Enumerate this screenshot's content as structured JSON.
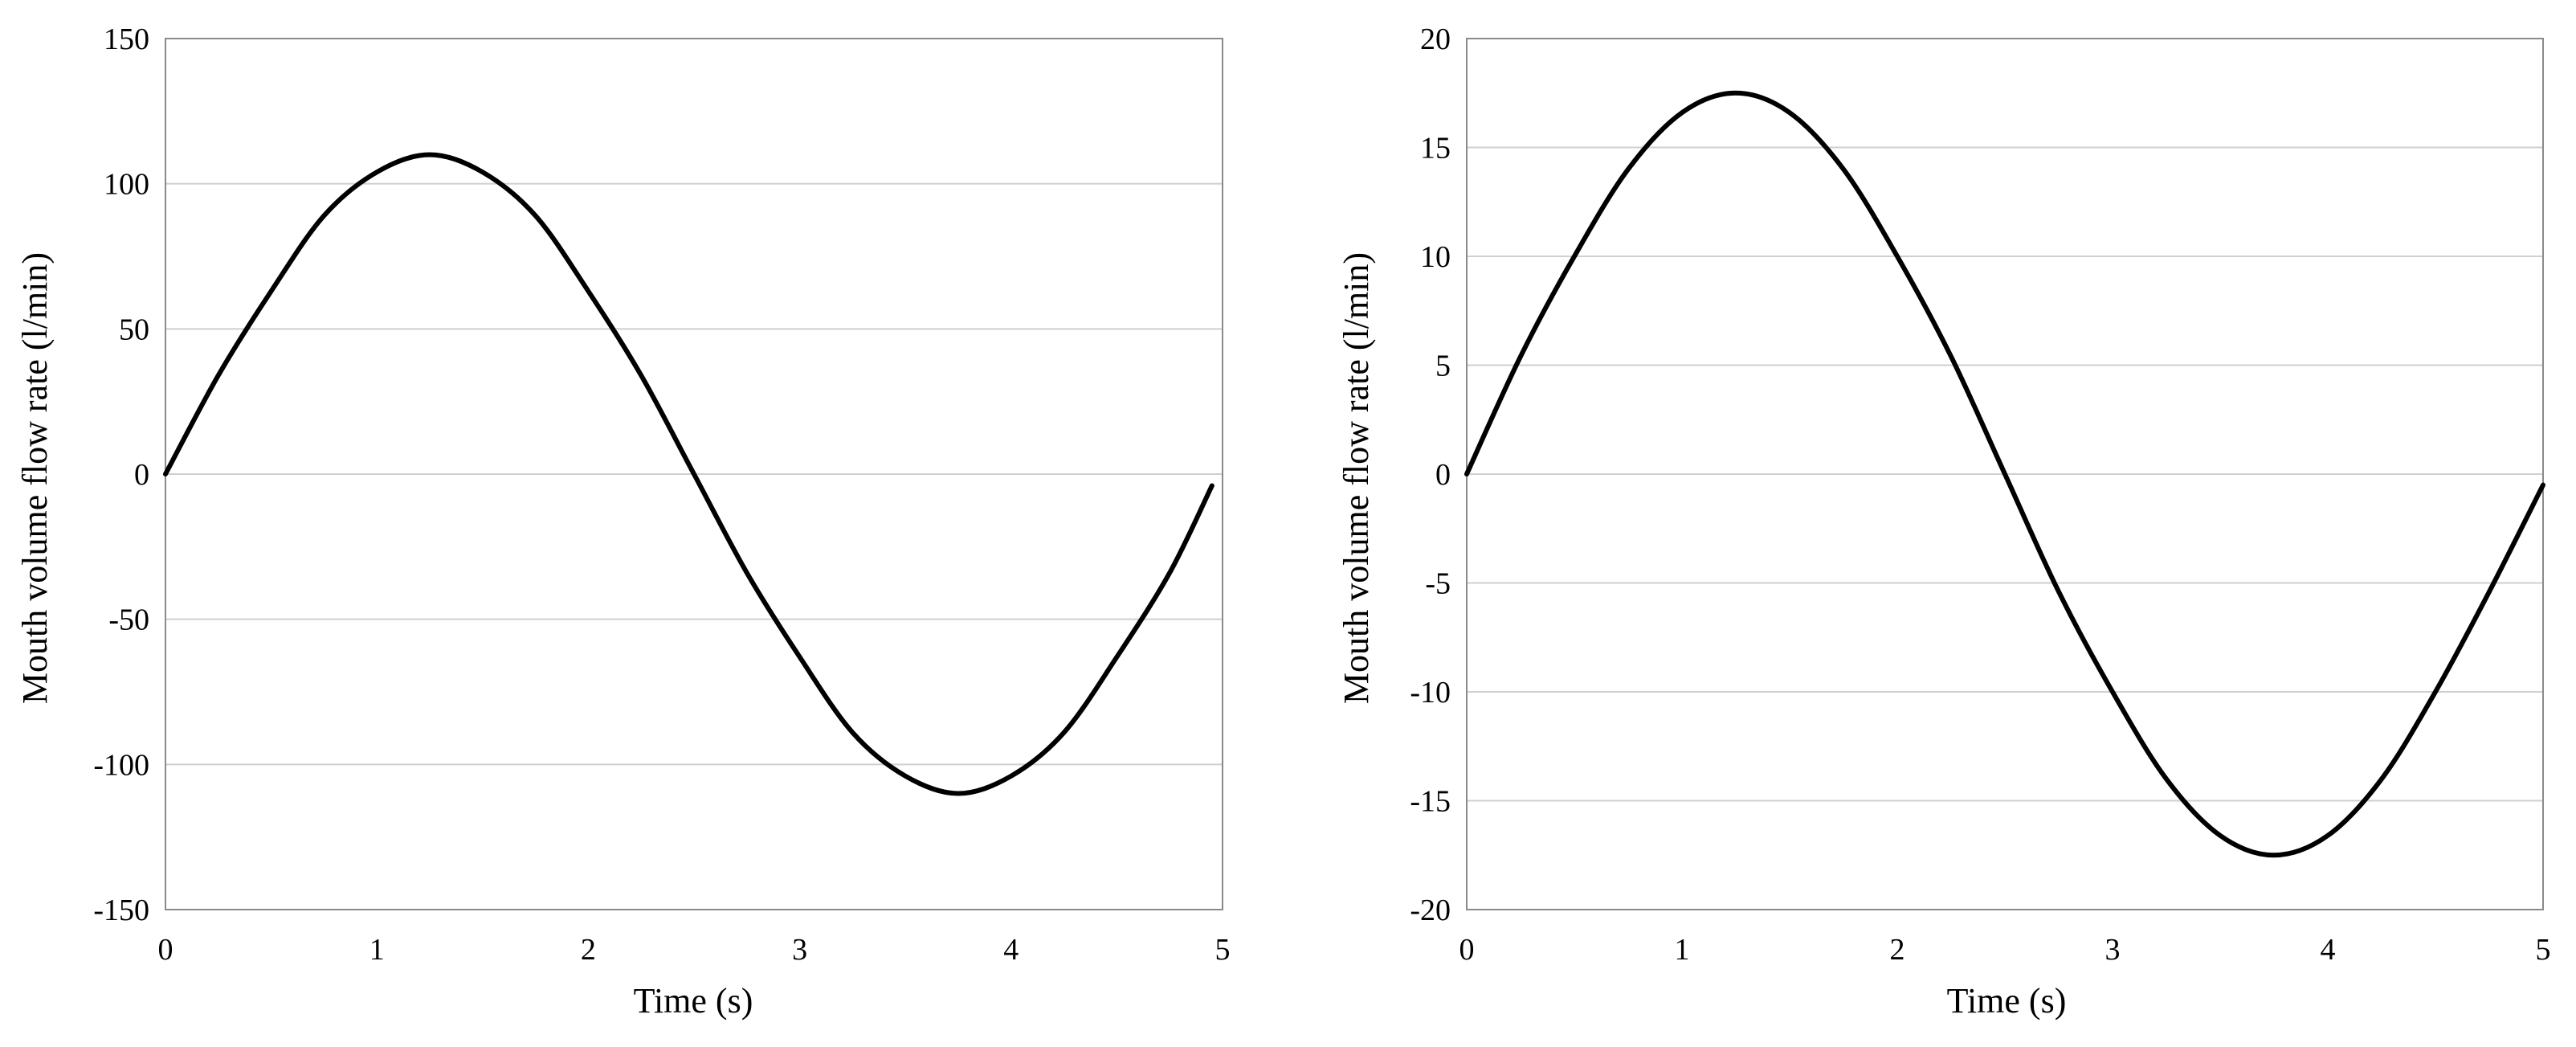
{
  "chart_data": [
    {
      "type": "line",
      "xlabel": "Time (s)",
      "ylabel": "Mouth volume flow rate (l/min)",
      "xlim": [
        0,
        5
      ],
      "ylim": [
        -150,
        150
      ],
      "x_ticks": [
        "0",
        "1",
        "2",
        "3",
        "4",
        "5"
      ],
      "y_ticks": [
        "150",
        "100",
        "50",
        "0",
        "-50",
        "-100",
        "-150"
      ],
      "grid": "horizontal",
      "legend": "none",
      "line_color": "#000000",
      "series": [
        {
          "x": [
            0,
            0.25,
            0.5,
            0.75,
            1.0,
            1.25,
            1.5,
            1.75,
            2.0,
            2.25,
            2.5,
            2.75,
            3.0,
            3.25,
            3.5,
            3.75,
            4.0,
            4.25,
            4.5,
            4.75,
            4.95
          ],
          "values": [
            0,
            34,
            63,
            89,
            104,
            110,
            104,
            89,
            63,
            34,
            0,
            -34,
            -63,
            -89,
            -104,
            -110,
            -104,
            -89,
            -63,
            -34,
            -4
          ]
        }
      ]
    },
    {
      "type": "line",
      "xlabel": "Time (s)",
      "ylabel": "Mouth volume flow rate (l/min)",
      "xlim": [
        0,
        5
      ],
      "ylim": [
        -20,
        20
      ],
      "x_ticks": [
        "0",
        "1",
        "2",
        "3",
        "4",
        "5"
      ],
      "y_ticks": [
        "20",
        "15",
        "10",
        "5",
        "0",
        "-5",
        "-10",
        "-15",
        "-20"
      ],
      "grid": "horizontal",
      "legend": "none",
      "line_color": "#000000",
      "series": [
        {
          "x": [
            0,
            0.25,
            0.5,
            0.75,
            1.0,
            1.25,
            1.5,
            1.75,
            2.0,
            2.25,
            2.5,
            2.75,
            3.0,
            3.25,
            3.5,
            3.75,
            4.0,
            4.25,
            4.5,
            4.75,
            5.0
          ],
          "values": [
            0,
            5.4,
            10,
            14,
            16.6,
            17.5,
            16.6,
            14,
            10,
            5.4,
            0,
            -5.4,
            -10,
            -14,
            -16.6,
            -17.5,
            -16.6,
            -14,
            -10,
            -5.4,
            -0.5
          ]
        }
      ]
    }
  ]
}
